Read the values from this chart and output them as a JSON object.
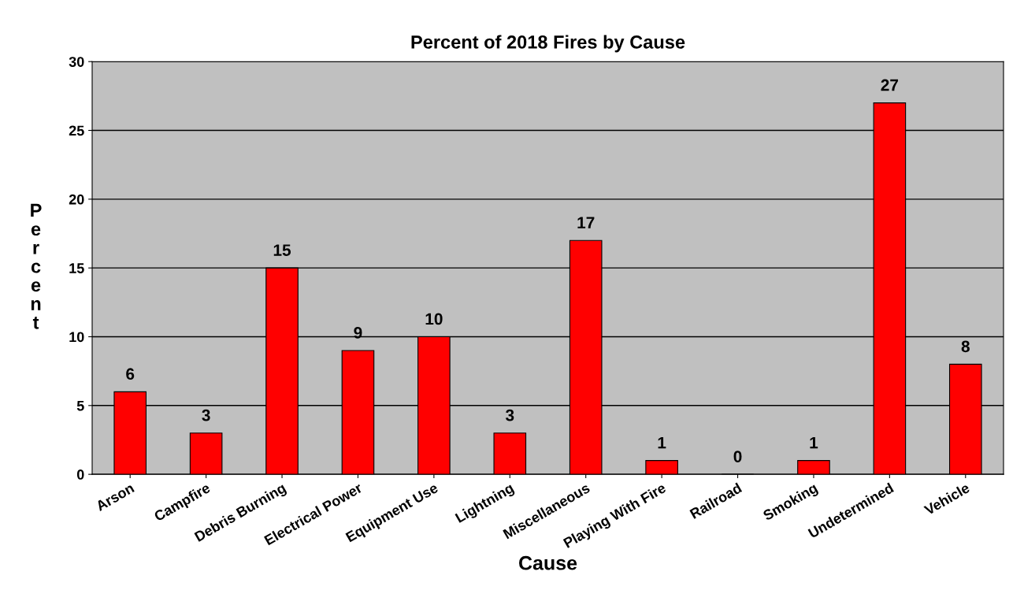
{
  "chart_data": {
    "type": "bar",
    "title": "Percent of 2018 Fires by Cause",
    "xlabel": "Cause",
    "ylabel": "Percent",
    "categories": [
      "Arson",
      "Campfire",
      "Debris Burning",
      "Electrical Power",
      "Equipment Use",
      "Lightning",
      "Miscellaneous",
      "Playing With Fire",
      "Railroad",
      "Smoking",
      "Undetermined",
      "Vehicle"
    ],
    "values": [
      6,
      3,
      15,
      9,
      10,
      3,
      17,
      1,
      0,
      1,
      27,
      8
    ],
    "color": "#ff0000",
    "ylim": [
      0,
      30
    ],
    "yticks": [
      0,
      5,
      10,
      15,
      20,
      25,
      30
    ],
    "grid": "y",
    "data_labels": true
  }
}
